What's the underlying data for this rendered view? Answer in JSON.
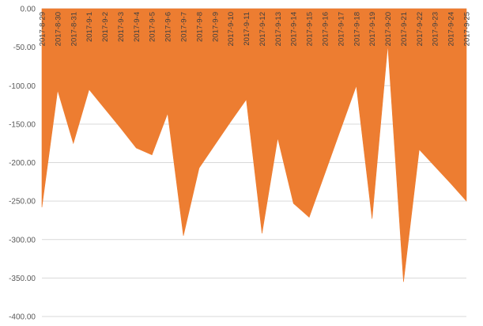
{
  "chart_data": {
    "type": "area",
    "title": "",
    "xlabel": "",
    "ylabel": "",
    "grid": true,
    "ylim": [
      -400,
      0
    ],
    "yticks": [
      "0.00",
      "-50.00",
      "-100.00",
      "-150.00",
      "-200.00",
      "-250.00",
      "-300.00",
      "-350.00",
      "-400.00"
    ],
    "categories": [
      "2017-8-29",
      "2017-8-30",
      "2017-8-31",
      "2017-9-1",
      "2017-9-2",
      "2017-9-3",
      "2017-9-4",
      "2017-9-5",
      "2017-9-6",
      "2017-9-7",
      "2017-9-8",
      "2017-9-9",
      "2017-9-10",
      "2017-9-11",
      "2017-9-12",
      "2017-9-13",
      "2017-9-14",
      "2017-9-15",
      "2017-9-16",
      "2017-9-17",
      "2017-9-18",
      "2017-9-19",
      "2017-9-20",
      "2017-9-21",
      "2017-9-22",
      "2017-9-23",
      "2017-9-24",
      "2017-9-25"
    ],
    "series": [
      {
        "values": [
          -258,
          -106,
          -175,
          -105,
          -130,
          -155,
          -181,
          -190,
          -136,
          -295,
          -207,
          -177,
          -147,
          -118,
          -292,
          -168,
          -253,
          -271,
          -214,
          -157,
          -100,
          -273,
          -47,
          -355,
          -183,
          -205,
          -227,
          -250
        ],
        "color": "#ED7D31"
      }
    ]
  }
}
